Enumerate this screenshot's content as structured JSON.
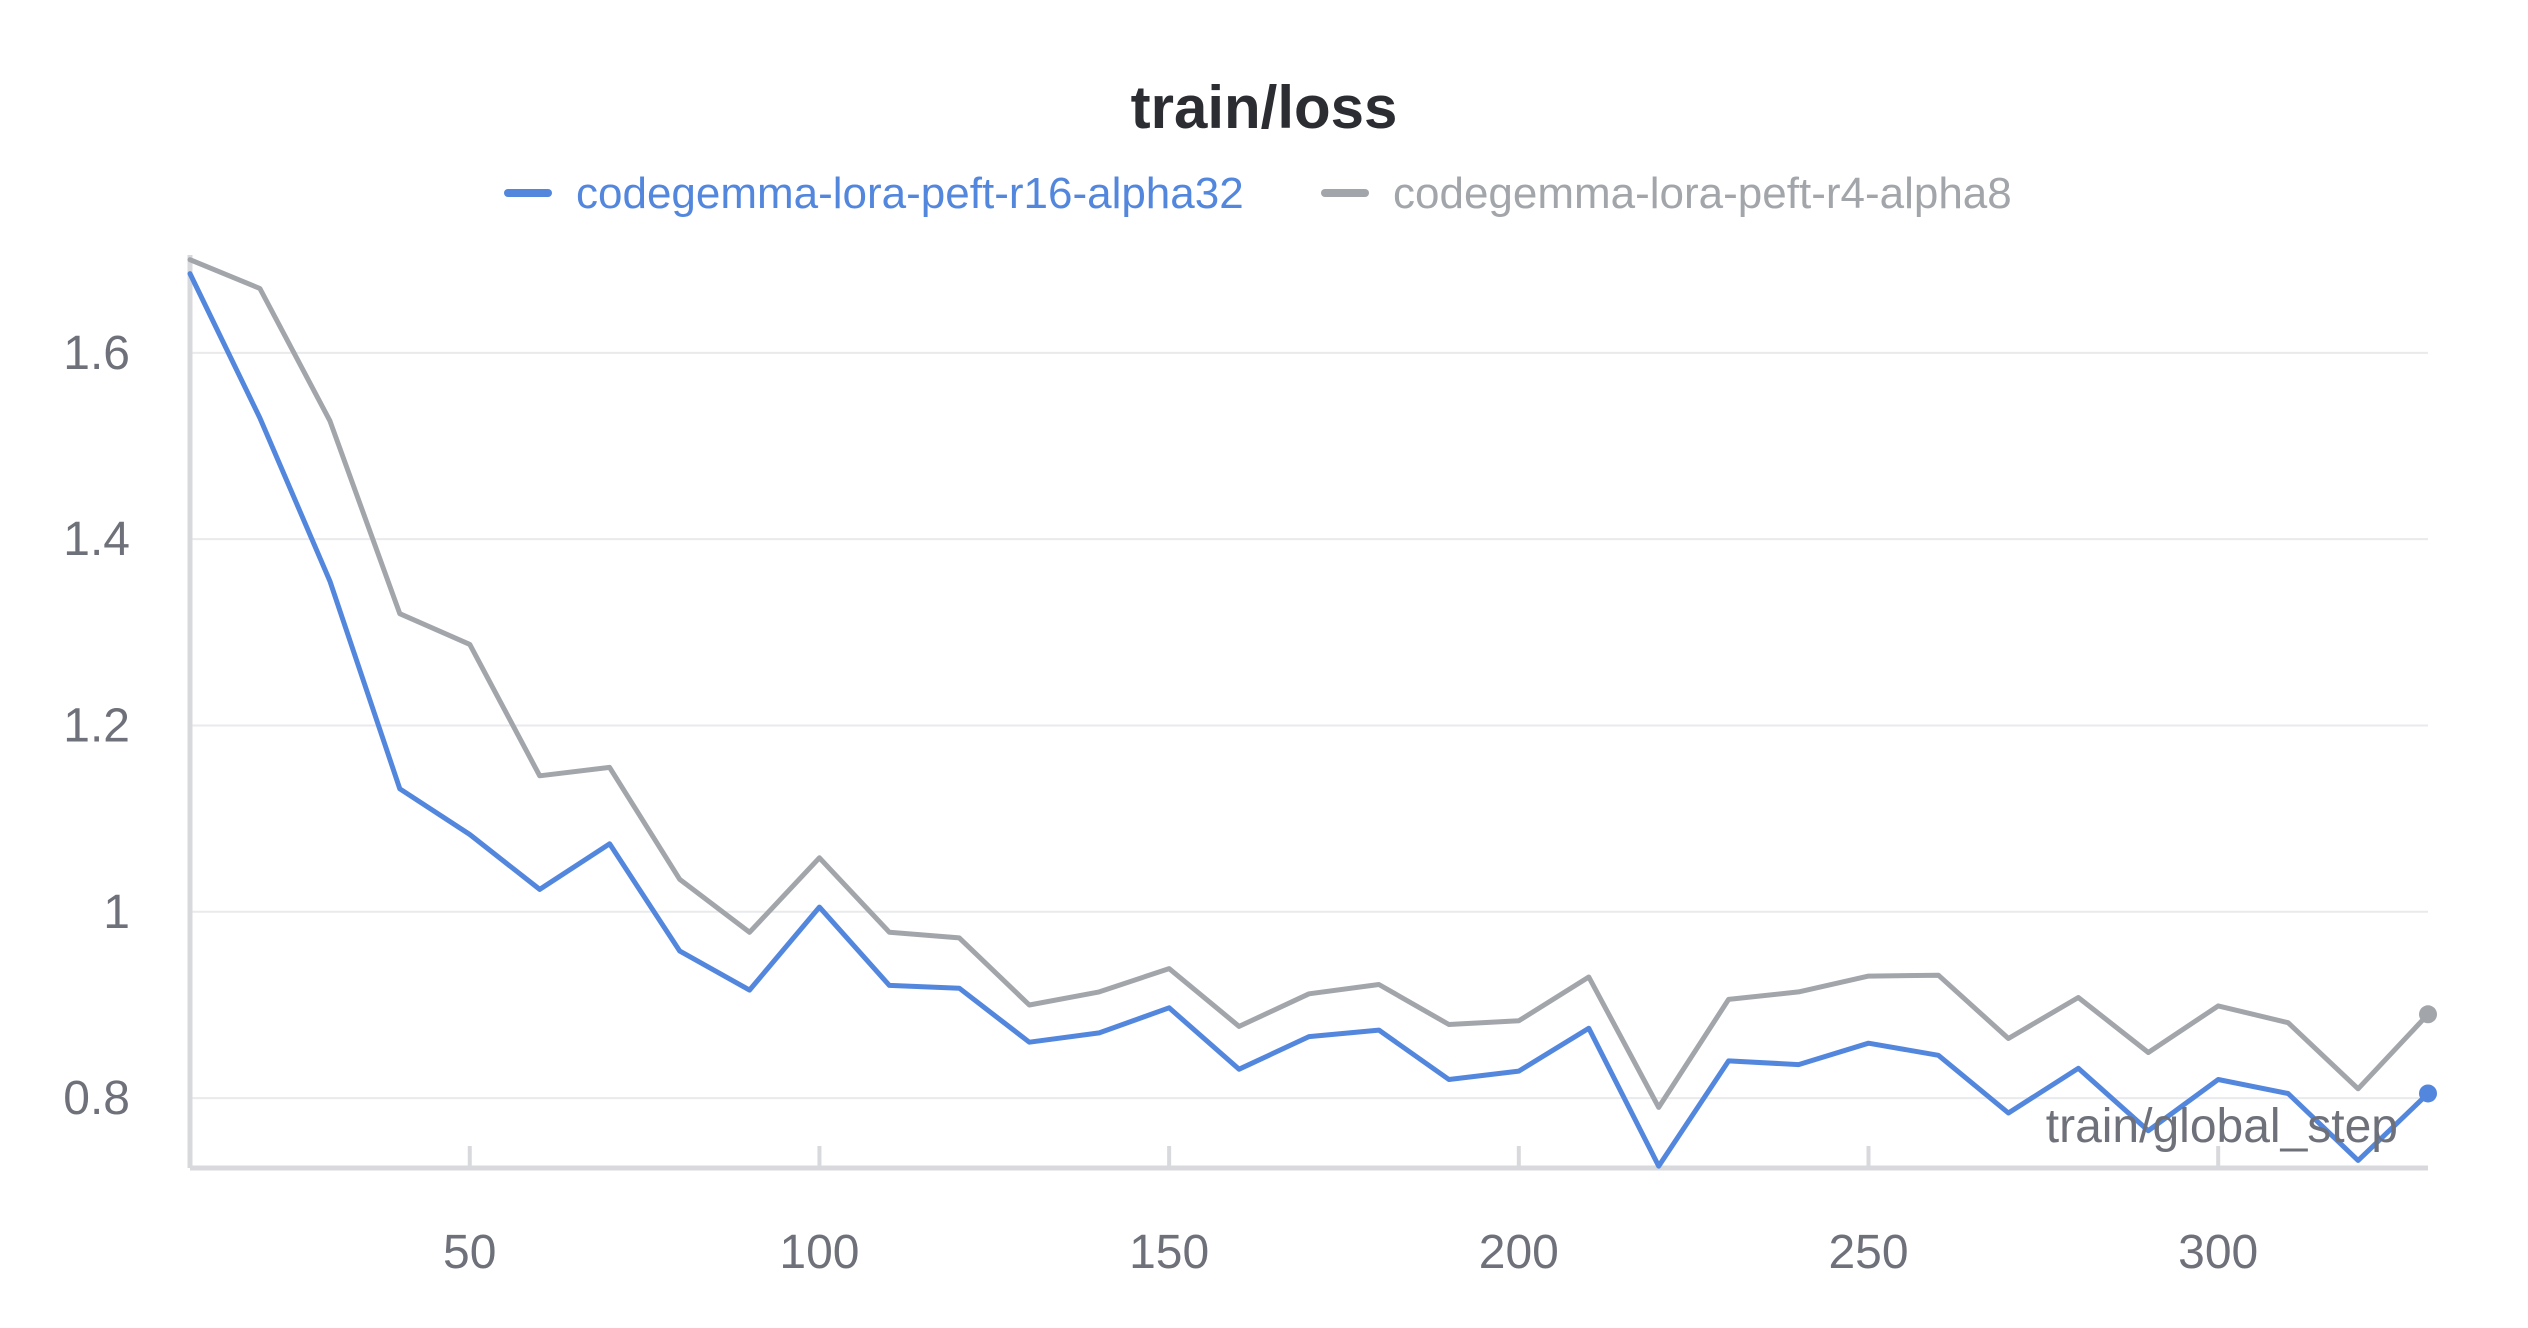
{
  "chart_data": {
    "type": "line",
    "title": "train/loss",
    "xlabel": "train/global_step",
    "ylabel": "",
    "xlim": [
      10,
      330
    ],
    "ylim": [
      0.725,
      1.705
    ],
    "xticks": [
      50,
      100,
      150,
      200,
      250,
      300
    ],
    "xtick_labels": [
      "50",
      "100",
      "150",
      "200",
      "250",
      "300"
    ],
    "yticks": [
      0.8,
      1.0,
      1.2,
      1.4,
      1.6
    ],
    "ytick_labels": [
      "0.8",
      "1",
      "1.2",
      "1.4",
      "1.6"
    ],
    "grid": true,
    "legend_position": "top-center",
    "x": [
      10,
      20,
      30,
      40,
      50,
      60,
      70,
      80,
      90,
      100,
      110,
      120,
      130,
      140,
      150,
      160,
      170,
      180,
      190,
      200,
      210,
      220,
      230,
      240,
      250,
      260,
      270,
      280,
      290,
      300,
      310,
      320,
      330
    ],
    "series": [
      {
        "name": "codegemma-lora-peft-r16-alpha32",
        "color": "#5387dd",
        "values": [
          1.685,
          1.53,
          1.355,
          1.132,
          1.083,
          1.024,
          1.073,
          0.958,
          0.916,
          1.005,
          0.921,
          0.918,
          0.86,
          0.87,
          0.897,
          0.831,
          0.866,
          0.873,
          0.82,
          0.829,
          0.875,
          0.727,
          0.84,
          0.836,
          0.859,
          0.846,
          0.784,
          0.832,
          0.765,
          0.82,
          0.805,
          0.733,
          0.805
        ]
      },
      {
        "name": "codegemma-lora-peft-r4-alpha8",
        "color": "#a2a5aa",
        "values": [
          1.7,
          1.669,
          1.527,
          1.32,
          1.287,
          1.146,
          1.155,
          1.035,
          0.978,
          1.058,
          0.978,
          0.972,
          0.9,
          0.914,
          0.939,
          0.877,
          0.912,
          0.922,
          0.879,
          0.883,
          0.93,
          0.79,
          0.906,
          0.914,
          0.931,
          0.932,
          0.864,
          0.908,
          0.849,
          0.899,
          0.881,
          0.81,
          0.89
        ]
      }
    ]
  }
}
